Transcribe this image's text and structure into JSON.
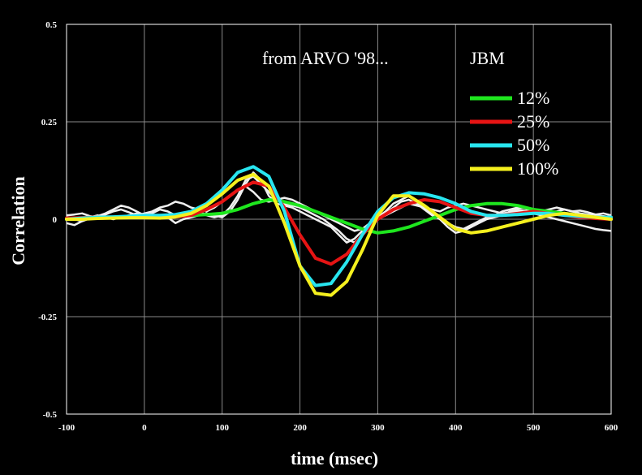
{
  "chart_data": {
    "type": "line",
    "xlabel": "time (msec)",
    "ylabel": "Correlation",
    "xlim": [
      -100,
      600
    ],
    "ylim": [
      -0.5,
      0.5
    ],
    "x_ticks": [
      -100,
      0,
      100,
      200,
      300,
      400,
      500,
      600
    ],
    "x_tick_labels": [
      "-100",
      "0",
      "100",
      "200",
      "300",
      "400",
      "500",
      "600"
    ],
    "y_ticks": [
      0.5,
      0.25,
      0,
      -0.25,
      -0.5
    ],
    "y_tick_labels": [
      "0.5",
      "0.25",
      "0",
      "-0.25",
      "-0.5"
    ],
    "grid": true,
    "legend_position": "top-right",
    "annotations": [
      "from ARVO '98...",
      "JBM"
    ],
    "series": [
      {
        "name": "12%",
        "color": "#1ee61e",
        "x": [
          -100,
          -80,
          -60,
          -40,
          -20,
          0,
          20,
          40,
          60,
          80,
          100,
          120,
          140,
          160,
          180,
          200,
          220,
          240,
          260,
          280,
          300,
          320,
          340,
          360,
          380,
          400,
          420,
          440,
          460,
          480,
          500,
          520,
          540,
          560,
          580,
          600
        ],
        "y": [
          0,
          0.002,
          0.003,
          0.004,
          0.005,
          0.005,
          0.006,
          0.008,
          0.01,
          0.012,
          0.015,
          0.025,
          0.04,
          0.05,
          0.045,
          0.035,
          0.02,
          0.005,
          -0.01,
          -0.025,
          -0.035,
          -0.03,
          -0.02,
          -0.005,
          0.01,
          0.025,
          0.035,
          0.04,
          0.04,
          0.035,
          0.025,
          0.02,
          0.015,
          0.01,
          0.005,
          0
        ]
      },
      {
        "name": "25%",
        "color": "#e61414",
        "x": [
          -100,
          -80,
          -60,
          -40,
          -20,
          0,
          20,
          40,
          60,
          80,
          100,
          120,
          140,
          160,
          180,
          200,
          220,
          240,
          260,
          280,
          300,
          320,
          340,
          360,
          380,
          400,
          420,
          440,
          460,
          480,
          500,
          520,
          540,
          560,
          580,
          600
        ],
        "y": [
          0.003,
          0.004,
          0.005,
          0.004,
          0.006,
          0.005,
          0.004,
          0.006,
          0.01,
          0.025,
          0.045,
          0.075,
          0.095,
          0.085,
          0.03,
          -0.04,
          -0.1,
          -0.115,
          -0.09,
          -0.04,
          0,
          0.025,
          0.04,
          0.05,
          0.045,
          0.03,
          0.015,
          0.01,
          0.01,
          0.015,
          0.02,
          0.015,
          0.01,
          0.005,
          0.002,
          0
        ]
      },
      {
        "name": "50%",
        "color": "#28e6f0",
        "x": [
          -100,
          -80,
          -60,
          -40,
          -20,
          0,
          20,
          40,
          60,
          80,
          100,
          120,
          140,
          160,
          180,
          200,
          220,
          240,
          260,
          280,
          300,
          320,
          340,
          360,
          380,
          400,
          420,
          440,
          460,
          480,
          500,
          520,
          540,
          560,
          580,
          600
        ],
        "y": [
          0,
          0.003,
          0.005,
          0.006,
          0.008,
          0.01,
          0.01,
          0.012,
          0.02,
          0.04,
          0.075,
          0.12,
          0.135,
          0.11,
          0.02,
          -0.12,
          -0.17,
          -0.165,
          -0.11,
          -0.04,
          0.02,
          0.055,
          0.068,
          0.065,
          0.055,
          0.04,
          0.02,
          0.01,
          0.01,
          0.012,
          0.015,
          0.015,
          0.01,
          0.008,
          0.005,
          0.005
        ]
      },
      {
        "name": "100%",
        "color": "#f5f01e",
        "x": [
          -100,
          -80,
          -60,
          -40,
          -20,
          0,
          20,
          40,
          60,
          80,
          100,
          120,
          140,
          160,
          180,
          200,
          220,
          240,
          260,
          280,
          300,
          320,
          340,
          360,
          380,
          400,
          420,
          440,
          460,
          480,
          500,
          520,
          540,
          560,
          580,
          600
        ],
        "y": [
          0,
          0,
          0.002,
          0.003,
          0.004,
          0.004,
          0.003,
          0.006,
          0.015,
          0.035,
          0.065,
          0.1,
          0.115,
          0.085,
          -0.01,
          -0.12,
          -0.19,
          -0.195,
          -0.16,
          -0.08,
          0.01,
          0.06,
          0.06,
          0.035,
          0.005,
          -0.025,
          -0.035,
          -0.03,
          -0.02,
          -0.01,
          0,
          0.01,
          0.015,
          0.01,
          0.005,
          0
        ]
      }
    ],
    "background_traces_color": "#f0f0f0",
    "background_traces": [
      {
        "x": [
          -100,
          -90,
          -80,
          -70,
          -60,
          -50,
          -40,
          -30,
          -20,
          -10,
          0,
          10,
          20,
          30,
          40,
          50,
          60,
          70,
          80,
          90,
          100,
          110,
          120,
          130,
          140,
          150,
          160,
          170,
          180,
          190,
          200,
          210,
          220,
          230,
          240,
          250,
          260,
          270,
          280,
          290,
          300,
          310,
          320,
          330,
          340,
          350,
          360,
          370,
          380,
          390,
          400,
          410,
          420,
          430,
          440,
          450,
          460,
          470,
          480,
          490,
          500,
          510,
          520,
          530,
          540,
          550,
          560,
          570,
          580,
          590,
          600
        ],
        "y": [
          0.01,
          0.012,
          0.015,
          0.008,
          0.005,
          0.012,
          0.02,
          0.025,
          0.018,
          0.01,
          0.015,
          0.02,
          0.03,
          0.035,
          0.045,
          0.04,
          0.03,
          0.025,
          0.02,
          0.03,
          0.045,
          0.06,
          0.075,
          0.085,
          0.07,
          0.05,
          0.045,
          0.05,
          0.055,
          0.05,
          0.04,
          0.03,
          0.02,
          0.01,
          0,
          -0.01,
          -0.02,
          -0.03,
          -0.025,
          -0.01,
          0,
          0.01,
          0.02,
          0.03,
          0.04,
          0.035,
          0.03,
          0.025,
          0.02,
          0.03,
          0.035,
          0.04,
          0.035,
          0.03,
          0.025,
          0.02,
          0.015,
          0.018,
          0.02,
          0.022,
          0.025,
          0.02,
          0.018,
          0.02,
          0.025,
          0.02,
          0.022,
          0.018,
          0.012,
          0.015,
          0.01
        ]
      },
      {
        "x": [
          -100,
          -90,
          -80,
          -70,
          -60,
          -50,
          -40,
          -30,
          -20,
          -10,
          0,
          10,
          20,
          30,
          40,
          50,
          60,
          70,
          80,
          90,
          100,
          110,
          120,
          130,
          140,
          150,
          160,
          170,
          180,
          190,
          200,
          210,
          220,
          230,
          240,
          250,
          260,
          270,
          280,
          290,
          300,
          310,
          320,
          330,
          340,
          350,
          360,
          370,
          380,
          390,
          400,
          410,
          420,
          430,
          440,
          450,
          460,
          470,
          480,
          490,
          500,
          510,
          520,
          530,
          540,
          550,
          560,
          570,
          580,
          590,
          600
        ],
        "y": [
          -0.01,
          -0.015,
          -0.005,
          0.005,
          0.01,
          0.005,
          0,
          0.005,
          0.01,
          0.015,
          0.01,
          0.005,
          0.01,
          0.005,
          -0.01,
          0,
          0.005,
          0.01,
          0.015,
          0.01,
          0.005,
          0.02,
          0.05,
          0.09,
          0.12,
          0.1,
          0.06,
          0.04,
          0.035,
          0.03,
          0.02,
          0.01,
          0,
          -0.01,
          -0.02,
          -0.04,
          -0.06,
          -0.05,
          -0.03,
          -0.01,
          0.005,
          0.02,
          0.04,
          0.05,
          0.06,
          0.045,
          0.03,
          0.015,
          0,
          -0.02,
          -0.035,
          -0.03,
          -0.02,
          -0.01,
          0,
          0.005,
          0.01,
          0.02,
          0.025,
          0.02,
          0.015,
          0.01,
          0.005,
          0,
          -0.005,
          -0.01,
          -0.015,
          -0.02,
          -0.025,
          -0.028,
          -0.03
        ]
      },
      {
        "x": [
          -100,
          -90,
          -80,
          -70,
          -60,
          -50,
          -40,
          -30,
          -20,
          -10,
          0,
          10,
          20,
          30,
          40,
          50,
          60,
          70,
          80,
          90,
          100,
          110,
          120,
          130,
          140,
          150,
          160,
          170,
          180,
          190,
          200,
          210,
          220,
          230,
          240,
          250,
          260,
          270,
          280,
          290,
          300,
          310,
          320,
          330,
          340,
          350,
          360,
          370,
          380,
          390,
          400,
          410,
          420,
          430,
          440,
          450,
          460,
          470,
          480,
          490,
          500,
          510,
          520,
          530,
          540,
          550,
          560,
          570,
          580,
          590,
          600
        ],
        "y": [
          0.005,
          0,
          -0.005,
          0.002,
          0.008,
          0.015,
          0.025,
          0.035,
          0.03,
          0.02,
          0.01,
          0.015,
          0.025,
          0.02,
          0.01,
          0.015,
          0.02,
          0.02,
          0.01,
          0.005,
          0.01,
          0.03,
          0.06,
          0.1,
          0.11,
          0.09,
          0.07,
          0.05,
          0.04,
          0.035,
          0.03,
          0.02,
          0.01,
          0,
          -0.015,
          -0.03,
          -0.05,
          -0.06,
          -0.04,
          -0.02,
          0,
          0.015,
          0.03,
          0.045,
          0.05,
          0.04,
          0.025,
          0.01,
          0,
          -0.01,
          -0.02,
          -0.025,
          -0.015,
          -0.005,
          0.005,
          0.01,
          0.02,
          0.025,
          0.03,
          0.028,
          0.025,
          0.02,
          0.025,
          0.03,
          0.025,
          0.02,
          0.015,
          0.012,
          0.01,
          0.008,
          0.005
        ]
      }
    ]
  }
}
